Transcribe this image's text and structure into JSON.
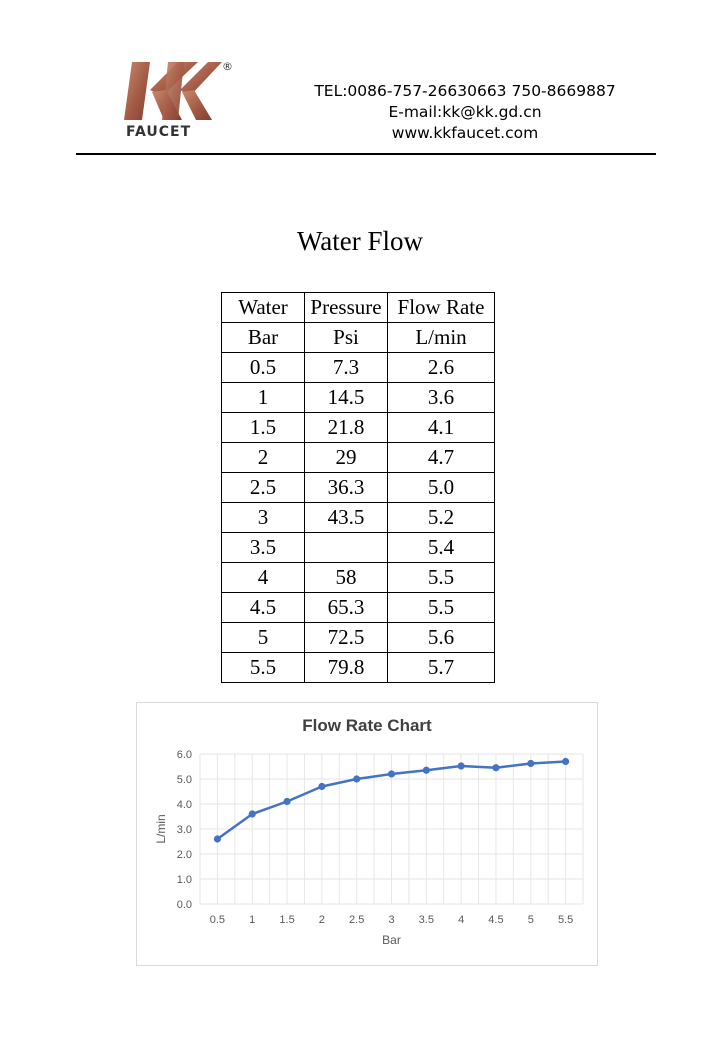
{
  "header": {
    "logo_text": "KK",
    "logo_subtext": "FAUCET",
    "registered_mark": "®",
    "tel": "TEL:0086-757-26630663 750-8669887",
    "email": "E-mail:kk@kk.gd.cn",
    "website": "www.kkfaucet.com"
  },
  "document": {
    "title": "Water Flow"
  },
  "table": {
    "header_row1": [
      "Water",
      "Pressure",
      "Flow Rate"
    ],
    "header_row2": [
      "Bar",
      "Psi",
      "L/min"
    ],
    "rows": [
      [
        "0.5",
        "7.3",
        "2.6"
      ],
      [
        "1",
        "14.5",
        "3.6"
      ],
      [
        "1.5",
        "21.8",
        "4.1"
      ],
      [
        "2",
        "29",
        "4.7"
      ],
      [
        "2.5",
        "36.3",
        "5.0"
      ],
      [
        "3",
        "43.5",
        "5.2"
      ],
      [
        "3.5",
        "",
        "5.4"
      ],
      [
        "4",
        "58",
        "5.5"
      ],
      [
        "4.5",
        "65.3",
        "5.5"
      ],
      [
        "5",
        "72.5",
        "5.6"
      ],
      [
        "5.5",
        "79.8",
        "5.7"
      ]
    ]
  },
  "chart_data": {
    "type": "line",
    "title": "Flow Rate Chart",
    "xlabel": "Bar",
    "ylabel": "L/min",
    "categories": [
      "0.5",
      "1",
      "1.5",
      "2",
      "2.5",
      "3",
      "3.5",
      "4",
      "4.5",
      "5",
      "5.5"
    ],
    "values": [
      2.6,
      3.6,
      4.1,
      4.7,
      5.0,
      5.2,
      5.35,
      5.52,
      5.45,
      5.62,
      5.7
    ],
    "ylim": [
      0,
      6
    ],
    "yticks": [
      "0.0",
      "1.0",
      "2.0",
      "3.0",
      "4.0",
      "5.0",
      "6.0"
    ],
    "grid": true,
    "legend": "none",
    "line_color": "#4472c4",
    "grid_color": "#e6e6e6"
  }
}
